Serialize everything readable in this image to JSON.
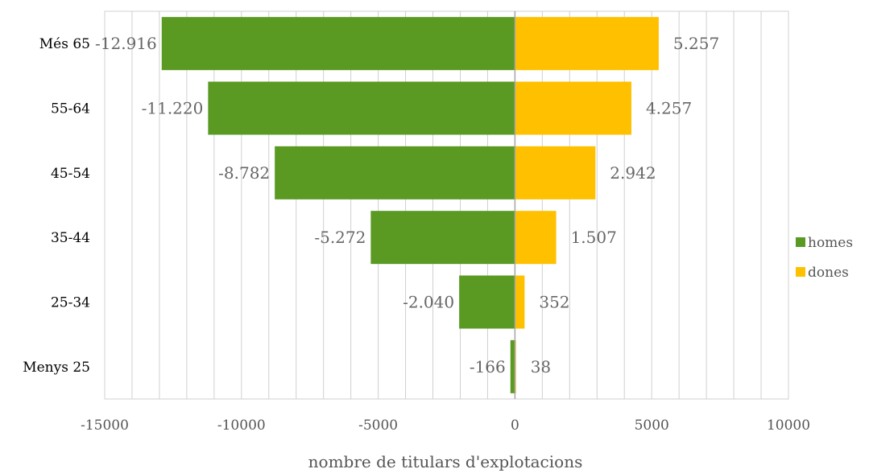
{
  "chart_data": {
    "type": "bar",
    "orientation": "horizontal",
    "stacking": "diverging",
    "categories": [
      "Més 65",
      "55-64",
      "45-54",
      "35-44",
      "25-34",
      "Menys 25"
    ],
    "series": [
      {
        "name": "homes",
        "color": "#5a9a23",
        "values": [
          -12916,
          -11220,
          -8782,
          -5272,
          -2040,
          -166
        ],
        "labels": [
          "-12.916",
          "-11.220",
          "-8.782",
          "-5.272",
          "-2.040",
          "-166"
        ]
      },
      {
        "name": "dones",
        "color": "#ffc000",
        "values": [
          5257,
          4257,
          2942,
          1507,
          352,
          38
        ],
        "labels": [
          "5.257",
          "4.257",
          "2.942",
          "1.507",
          "352",
          "38"
        ]
      }
    ],
    "xlabel": "nombre de titulars d'explotacions",
    "ylabel": "",
    "xlim": [
      -15000,
      10000
    ],
    "xticks": [
      "-15000",
      "-10000",
      "-5000",
      "0",
      "5000",
      "10000"
    ],
    "grid": "vertical",
    "legend_position": "right"
  }
}
